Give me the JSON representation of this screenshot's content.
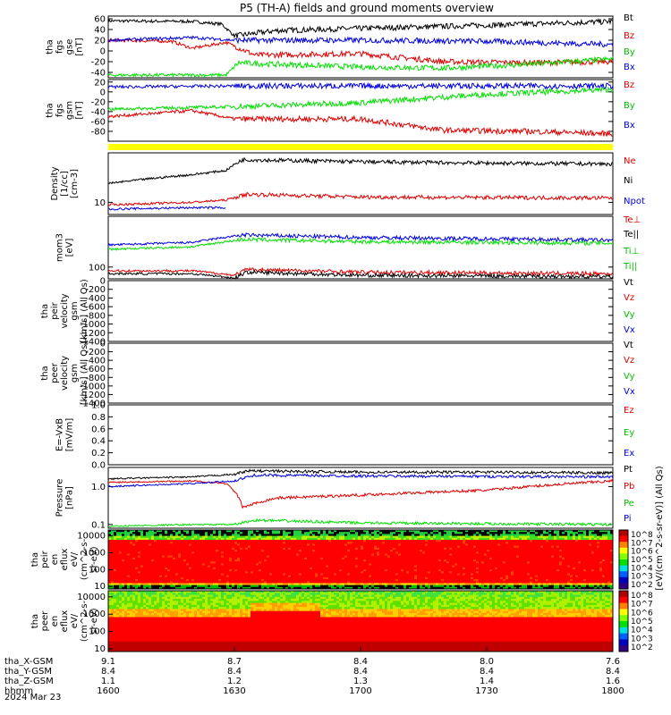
{
  "title": "P5 (TH-A) fields and ground moments overview",
  "date_label": "2024 Mar 23",
  "colors": {
    "black": "#000000",
    "red": "#e00000",
    "green": "#00e000",
    "blue": "#0000e0",
    "yellow": "#ffff00"
  },
  "chart_data": [
    {
      "type": "line",
      "id": "fgs_gse",
      "ylabel": [
        "tha",
        "fgs",
        "gse",
        "[nT]"
      ],
      "ylim": [
        -50,
        65
      ],
      "yticks": [
        "60",
        "40",
        "20",
        "0",
        "-20",
        "-40"
      ],
      "legend": [
        "Bt",
        "Bz",
        "By",
        "Bx"
      ],
      "series": [
        {
          "name": "Bt",
          "color": "#000000",
          "points": [
            [
              1600,
              56
            ],
            [
              1620,
              55
            ],
            [
              1627,
              50
            ],
            [
              1630,
              28
            ],
            [
              1640,
              38
            ],
            [
              1700,
              42
            ],
            [
              1730,
              48
            ],
            [
              1800,
              55
            ]
          ]
        },
        {
          "name": "Bz",
          "color": "#e00000",
          "points": [
            [
              1600,
              20
            ],
            [
              1615,
              18
            ],
            [
              1620,
              5
            ],
            [
              1628,
              16
            ],
            [
              1635,
              -8
            ],
            [
              1700,
              -5
            ],
            [
              1720,
              -20
            ],
            [
              1740,
              -22
            ],
            [
              1800,
              -20
            ]
          ]
        },
        {
          "name": "By",
          "color": "#00e000",
          "points": [
            [
              1600,
              -45
            ],
            [
              1628,
              -45
            ],
            [
              1631,
              -22
            ],
            [
              1640,
              -25
            ],
            [
              1700,
              -30
            ],
            [
              1720,
              -32
            ],
            [
              1740,
              -25
            ],
            [
              1800,
              -15
            ]
          ]
        },
        {
          "name": "Bx",
          "color": "#0000e0",
          "points": [
            [
              1600,
              20
            ],
            [
              1620,
              25
            ],
            [
              1630,
              20
            ],
            [
              1700,
              20
            ],
            [
              1730,
              18
            ],
            [
              1800,
              12
            ]
          ]
        }
      ]
    },
    {
      "type": "line",
      "id": "fgs_gsm",
      "ylabel": [
        "tha",
        "fgs",
        "gsm",
        "[nT]"
      ],
      "ylim": [
        -100,
        25
      ],
      "yticks": [
        "20",
        "0",
        "-20",
        "-40",
        "-60",
        "-80"
      ],
      "legend": [
        "Bz",
        "By",
        "Bx"
      ],
      "series": [
        {
          "name": "Bz",
          "color": "#e00000",
          "points": [
            [
              1600,
              -50
            ],
            [
              1620,
              -38
            ],
            [
              1630,
              -55
            ],
            [
              1700,
              -55
            ],
            [
              1720,
              -78
            ],
            [
              1740,
              -80
            ],
            [
              1800,
              -85
            ]
          ]
        },
        {
          "name": "By",
          "color": "#00e000",
          "points": [
            [
              1600,
              -35
            ],
            [
              1630,
              -30
            ],
            [
              1700,
              -22
            ],
            [
              1730,
              -5
            ],
            [
              1800,
              5
            ]
          ]
        },
        {
          "name": "Bx",
          "color": "#0000e0",
          "points": [
            [
              1600,
              10
            ],
            [
              1630,
              12
            ],
            [
              1700,
              12
            ],
            [
              1730,
              12
            ],
            [
              1800,
              12
            ]
          ]
        }
      ]
    },
    {
      "type": "bar",
      "id": "mode_bar",
      "ylabel": [],
      "color": "#ffff00"
    },
    {
      "type": "line",
      "id": "density",
      "log": true,
      "ylabel": [
        "Density",
        "[1/cc]",
        "[cm-3]"
      ],
      "ylim": [
        6,
        80
      ],
      "yticks": [
        "10"
      ],
      "legend": [
        "Ne",
        "Ni",
        "Npot"
      ],
      "series": [
        {
          "name": "Ne",
          "color": "#000000",
          "points": [
            [
              1600,
              22
            ],
            [
              1620,
              32
            ],
            [
              1628,
              38
            ],
            [
              1632,
              60
            ],
            [
              1700,
              55
            ],
            [
              1730,
              52
            ],
            [
              1800,
              50
            ]
          ]
        },
        {
          "name": "Ni",
          "color": "#e00000",
          "points": [
            [
              1600,
              9
            ],
            [
              1620,
              10
            ],
            [
              1628,
              11
            ],
            [
              1633,
              14
            ],
            [
              1700,
              12.5
            ],
            [
              1800,
              12
            ]
          ]
        },
        {
          "name": "Npot",
          "color": "#0000e0",
          "points": [
            [
              1600,
              7.5
            ],
            [
              1620,
              8
            ],
            [
              1628,
              8
            ]
          ]
        }
      ]
    },
    {
      "type": "line",
      "id": "temperature",
      "log": true,
      "ylabel": [
        "mom3",
        "[eV]"
      ],
      "ylim": [
        60,
        900
      ],
      "yticks": [
        "100"
      ],
      "legend": [
        "Te⊥",
        "Te||",
        "Ti⊥",
        "Ti||"
      ],
      "series": [
        {
          "name": "Te⊥",
          "color": "#0000e0",
          "points": [
            [
              1600,
              260
            ],
            [
              1620,
              290
            ],
            [
              1632,
              400
            ],
            [
              1700,
              360
            ],
            [
              1800,
              320
            ]
          ]
        },
        {
          "name": "Te||",
          "color": "#00e000",
          "points": [
            [
              1600,
              215
            ],
            [
              1620,
              240
            ],
            [
              1632,
              330
            ],
            [
              1700,
              300
            ],
            [
              1800,
              280
            ]
          ]
        },
        {
          "name": "Ti⊥",
          "color": "#e00000",
          "points": [
            [
              1600,
              85
            ],
            [
              1620,
              85
            ],
            [
              1630,
              70
            ],
            [
              1633,
              90
            ],
            [
              1700,
              80
            ],
            [
              1800,
              75
            ]
          ]
        },
        {
          "name": "Ti||",
          "color": "#000000",
          "points": [
            [
              1600,
              75
            ],
            [
              1620,
              75
            ],
            [
              1630,
              62
            ],
            [
              1633,
              80
            ],
            [
              1700,
              70
            ],
            [
              1800,
              66
            ]
          ]
        }
      ]
    },
    {
      "type": "line",
      "id": "peir_velocity",
      "ylabel": [
        "tha",
        "peir",
        "velocity",
        "gsm",
        "[km/s] (All Qs)"
      ],
      "ylim": [
        -1400,
        0
      ],
      "yticks": [
        "0",
        "-200",
        "-400",
        "-600",
        "-800",
        "-1000",
        "-1200",
        "-1400"
      ],
      "legend": [
        "Vt",
        "Vz",
        "Vy",
        "Vx"
      ],
      "series": []
    },
    {
      "type": "line",
      "id": "peer_velocity",
      "ylabel": [
        "tha",
        "peer",
        "velocity",
        "gsm",
        "[km/s] (All Qs)"
      ],
      "ylim": [
        -1400,
        0
      ],
      "yticks": [
        "0",
        "-200",
        "-400",
        "-600",
        "-800",
        "-1000",
        "-1200",
        "-1400"
      ],
      "legend": [
        "Vt",
        "Vz",
        "Vy",
        "Vx"
      ],
      "series": []
    },
    {
      "type": "line",
      "id": "efield",
      "ylabel": [
        "E=-VxB",
        "[mV/m]"
      ],
      "ylim": [
        0,
        1
      ],
      "yticks": [
        "1.0",
        "0.8",
        "0.6",
        "0.4",
        "0.2",
        "0.0"
      ],
      "legend": [
        "Ez",
        "Ey",
        "Ex"
      ],
      "series": []
    },
    {
      "type": "line",
      "id": "pressure",
      "log": true,
      "ylabel": [
        "Pressure",
        "[nPa]"
      ],
      "ylim": [
        0.08,
        3.2
      ],
      "yticks": [
        "1.0",
        "0.1"
      ],
      "legend": [
        "Pt",
        "Pb",
        "Pe",
        "Pi"
      ],
      "series": [
        {
          "name": "Pt",
          "color": "#000000",
          "points": [
            [
              1600,
              1.6
            ],
            [
              1620,
              1.8
            ],
            [
              1630,
              2.1
            ],
            [
              1633,
              2.6
            ],
            [
              1700,
              2.4
            ],
            [
              1730,
              2.4
            ],
            [
              1800,
              2.3
            ]
          ]
        },
        {
          "name": "Pb",
          "color": "#e00000",
          "points": [
            [
              1600,
              1.3
            ],
            [
              1620,
              1.4
            ],
            [
              1628,
              1.2
            ],
            [
              1632,
              0.28
            ],
            [
              1640,
              0.5
            ],
            [
              1700,
              0.6
            ],
            [
              1730,
              0.8
            ],
            [
              1800,
              1.4
            ]
          ]
        },
        {
          "name": "Pe",
          "color": "#00e000",
          "points": [
            [
              1600,
              0.09
            ],
            [
              1620,
              0.1
            ],
            [
              1630,
              0.1
            ],
            [
              1635,
              0.13
            ],
            [
              1700,
              0.11
            ],
            [
              1800,
              0.1
            ]
          ]
        },
        {
          "name": "Pi",
          "color": "#0000e0",
          "points": [
            [
              1600,
              1.0
            ],
            [
              1620,
              1.2
            ],
            [
              1630,
              1.4
            ],
            [
              1635,
              2.0
            ],
            [
              1700,
              1.9
            ],
            [
              1800,
              1.8
            ]
          ]
        }
      ]
    },
    {
      "type": "heatmap",
      "id": "peir_eflux",
      "ylabel": [
        "tha",
        "peir",
        "en",
        "eflux",
        "eV/",
        "(cm^2-s-",
        "sr-eV)"
      ],
      "yticks": [
        "10000",
        "1000",
        "100",
        "10"
      ],
      "colorbar": {
        "label": "[eV/(cm^2-s-sr-eV)] (All Qs)",
        "ticks": [
          "10^8",
          "10^7",
          "10^6",
          "10^5",
          "10^4",
          "10^3",
          "10^2"
        ]
      }
    },
    {
      "type": "heatmap",
      "id": "peer_eflux",
      "ylabel": [
        "tha",
        "peer",
        "en",
        "eflux",
        "eV/",
        "(cm^2-s-",
        "sr-eV)"
      ],
      "yticks": [
        "10000",
        "1000",
        "100",
        "10"
      ],
      "colorbar": {
        "label": "[eV/(cm^2-s-sr-eV)] (All Qs)",
        "ticks": [
          "10^8",
          "10^7",
          "10^6",
          "10^5",
          "10^4",
          "10^3",
          "10^2"
        ]
      }
    }
  ],
  "x_axis": {
    "rows": [
      {
        "label": "tha_X-GSM",
        "values": [
          "9.1",
          "8.7",
          "8.4",
          "8.0",
          "7.6"
        ]
      },
      {
        "label": "tha_Y-GSM",
        "values": [
          "8.4",
          "8.4",
          "8.4",
          "8.4",
          "8.4"
        ]
      },
      {
        "label": "tha_Z-GSM",
        "values": [
          "1.1",
          "1.2",
          "1.3",
          "1.4",
          "1.6"
        ]
      },
      {
        "label": "hhmm",
        "values": [
          "1600",
          "1630",
          "1700",
          "1730",
          "1800"
        ]
      }
    ]
  }
}
